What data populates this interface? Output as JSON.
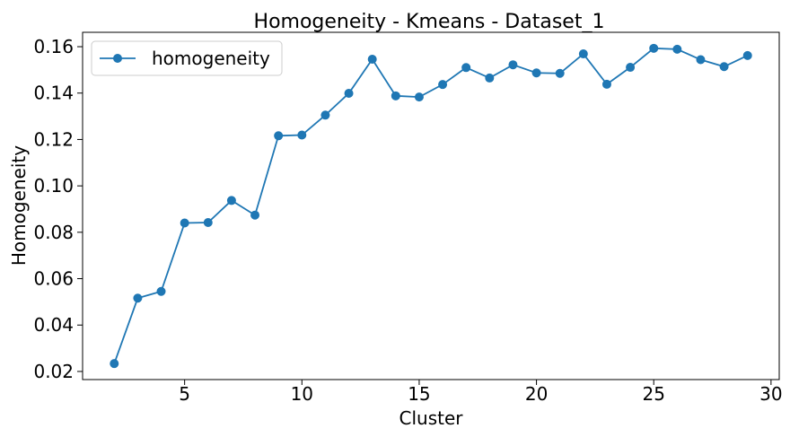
{
  "chart_data": {
    "type": "line",
    "title": "Homogeneity - Kmeans - Dataset_1",
    "xlabel": "Cluster",
    "ylabel": "Homogeneity",
    "xlim": [
      0.65,
      30.35
    ],
    "ylim": [
      0.0165,
      0.1662
    ],
    "xticks": [
      5,
      10,
      15,
      20,
      25,
      30
    ],
    "yticks": [
      0.02,
      0.04,
      0.06,
      0.08,
      0.1,
      0.12,
      0.14,
      0.16
    ],
    "ytick_labels": [
      "0.02",
      "0.04",
      "0.06",
      "0.08",
      "0.10",
      "0.12",
      "0.14",
      "0.16"
    ],
    "grid": false,
    "legend_position": "top-left",
    "series": [
      {
        "name": "homogeneity",
        "color": "#1f77b4",
        "marker": "circle",
        "x": [
          2,
          3,
          4,
          5,
          6,
          7,
          8,
          9,
          10,
          11,
          12,
          13,
          14,
          15,
          16,
          17,
          18,
          19,
          20,
          21,
          22,
          23,
          24,
          25,
          26,
          27,
          28,
          29
        ],
        "values": [
          0.0234,
          0.0516,
          0.0545,
          0.084,
          0.0842,
          0.0937,
          0.0874,
          0.1216,
          0.1219,
          0.1305,
          0.1399,
          0.1546,
          0.1388,
          0.1383,
          0.1437,
          0.151,
          0.1465,
          0.1522,
          0.1487,
          0.1485,
          0.1569,
          0.1438,
          0.1511,
          0.1593,
          0.1589,
          0.1544,
          0.1514,
          0.1562
        ]
      }
    ]
  }
}
